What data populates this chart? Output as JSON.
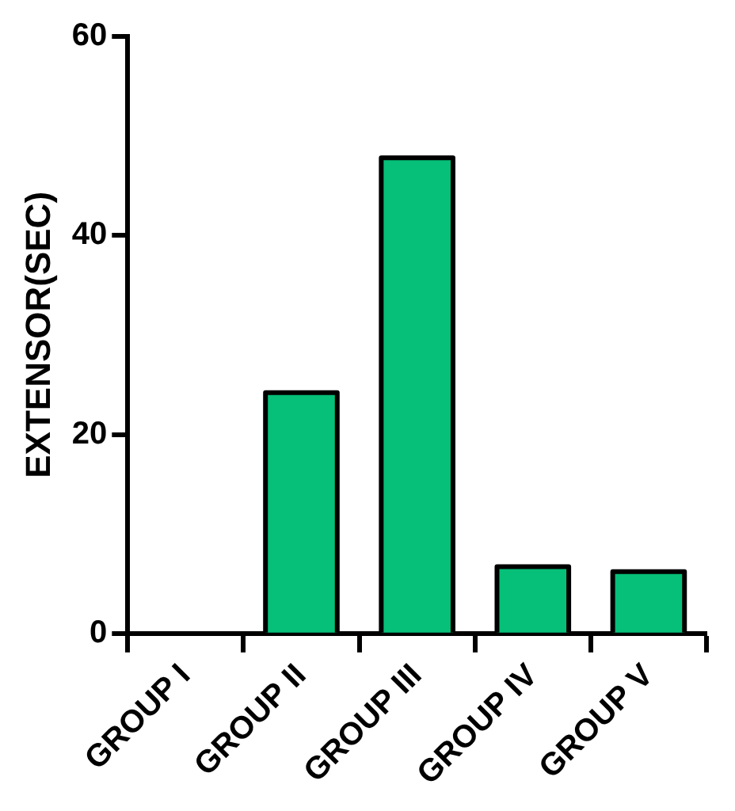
{
  "chart_data": {
    "type": "bar",
    "ylabel": "EXTENSOR(SEC)",
    "categories": [
      "GROUP I",
      "GROUP II",
      "GROUP III",
      "GROUP IV",
      "GROUP V"
    ],
    "values": [
      0,
      24.2,
      47.8,
      6.7,
      6.2
    ],
    "color": "#06bf78",
    "ylim": [
      0,
      60
    ],
    "yticks": [
      0,
      20,
      40,
      60
    ],
    "grid": false,
    "legend": false
  }
}
